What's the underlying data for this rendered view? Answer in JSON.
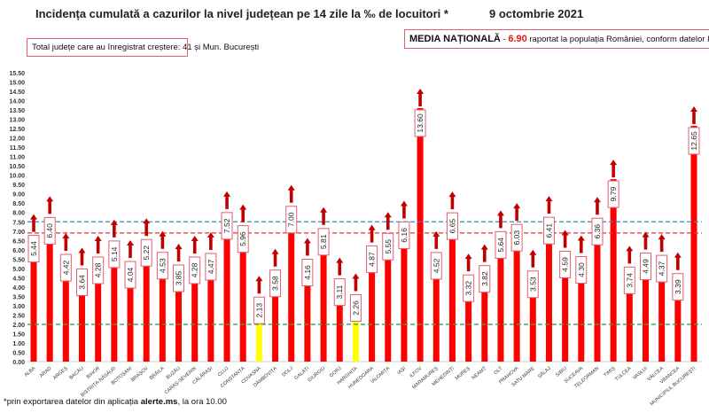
{
  "chart_data": {
    "type": "bar",
    "title": "Incidența cumulată a cazurilor la nivel județean pe 14 zile la ‰ de locuitori *",
    "date": "9 octombrie 2021",
    "note_left": "Total județe care au înregistrat creștere:  41 și Mun. București",
    "note_right": {
      "label": "MEDIA NAȚIONALĂ",
      "sep": " - ",
      "value": "6.90",
      "rest": " raportat la populația României, conform datelor INS"
    },
    "footnote": {
      "pre": "*prin exportarea datelor din aplicația ",
      "bold": "alerte.ms",
      "post": ", la ora 10.00"
    },
    "categories": [
      "ALBA",
      "ARAD",
      "ARGEȘ",
      "BACĂU",
      "BIHOR",
      "BISTRIȚA-NĂSĂUD",
      "BOTOȘANI",
      "BRAȘOV",
      "BRĂILA",
      "BUZĂU",
      "CARAȘ-SEVERIN",
      "CĂLĂRAȘI",
      "CLUJ",
      "CONSTANȚA",
      "COVASNA",
      "DÂMBOVIȚA",
      "DOLJ",
      "GALAȚI",
      "GIURGIU",
      "GORJ",
      "HARGHITA",
      "HUNEDOARA",
      "IALOMIȚA",
      "IAȘI",
      "ILFOV",
      "MARAMUREȘ",
      "MEHEDINȚI",
      "MUREȘ",
      "NEAMȚ",
      "OLT",
      "PRAHOVA",
      "SATU MARE",
      "SĂLAJ",
      "SIBIU",
      "SUCEAVA",
      "TELEORMAN",
      "TIMIȘ",
      "TULCEA",
      "VASLUI",
      "VÂLCEA",
      "VRANCEA",
      "MUNICIPIUL BUCUREȘTI"
    ],
    "values": [
      5.44,
      6.4,
      4.42,
      3.64,
      4.28,
      5.14,
      4.04,
      5.22,
      4.53,
      3.85,
      4.28,
      4.47,
      7.52,
      5.96,
      2.13,
      3.58,
      7.0,
      4.16,
      5.81,
      3.11,
      2.26,
      4.87,
      5.55,
      6.16,
      13.6,
      4.52,
      6.65,
      3.32,
      3.82,
      5.64,
      6.03,
      3.53,
      6.41,
      4.59,
      4.3,
      6.36,
      9.79,
      3.74,
      4.49,
      4.37,
      3.39,
      12.65
    ],
    "trend": "up-arrow on every bar",
    "bar_color": "#ff0000",
    "highlight_color": "#ffff00",
    "highlighted_categories": [
      "COVASNA",
      "HARGHITA"
    ],
    "arrow_color": "#c00000",
    "ylim": [
      0,
      15.5
    ],
    "ytick_step": 0.5,
    "reference_lines": [
      {
        "value": 7.5,
        "color": "#2e8bc0",
        "style": "dashed"
      },
      {
        "value": 6.9,
        "color": "#e0303a",
        "style": "dashed"
      },
      {
        "value": 2.0,
        "color": "#2ea84a",
        "style": "dashed"
      }
    ],
    "grid": false,
    "legend": "none"
  }
}
